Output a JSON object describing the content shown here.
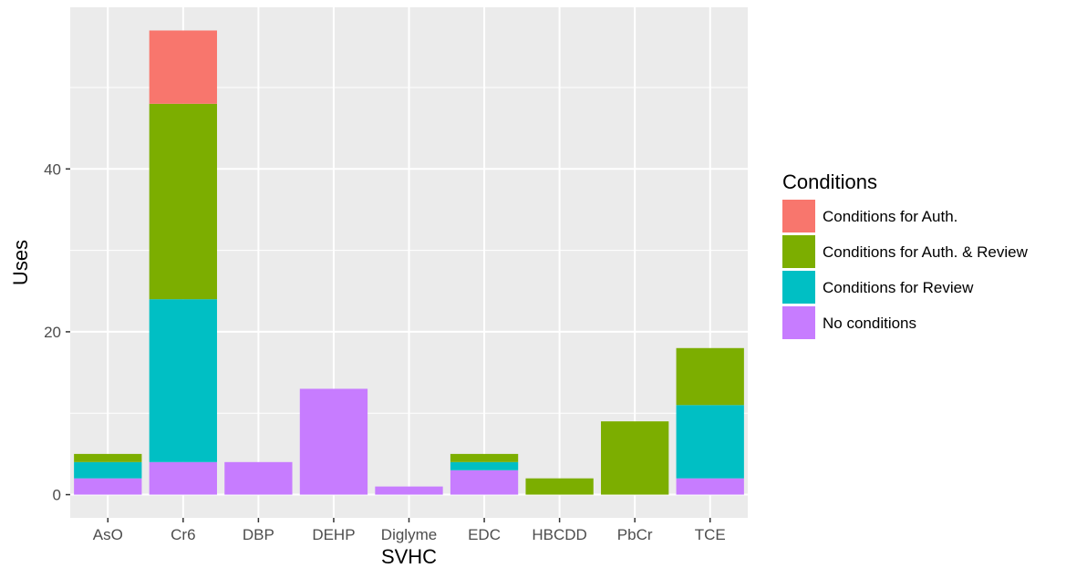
{
  "chart_data": {
    "type": "bar",
    "stacked": true,
    "categories": [
      "AsO",
      "Cr6",
      "DBP",
      "DEHP",
      "Diglyme",
      "EDC",
      "HBCDD",
      "PbCr",
      "TCE"
    ],
    "series": [
      {
        "name": "No conditions",
        "color": "#C77CFF",
        "values": [
          2,
          4,
          4,
          13,
          1,
          3,
          0,
          0,
          2
        ]
      },
      {
        "name": "Conditions for Review",
        "color": "#00BFC4",
        "values": [
          2,
          20,
          0,
          0,
          0,
          1,
          0,
          0,
          9
        ]
      },
      {
        "name": "Conditions for Auth. & Review",
        "color": "#7CAE00",
        "values": [
          1,
          24,
          0,
          0,
          0,
          1,
          2,
          9,
          7
        ]
      },
      {
        "name": "Conditions for Auth.",
        "color": "#F8766D",
        "values": [
          0,
          9,
          0,
          0,
          0,
          0,
          0,
          0,
          0
        ]
      }
    ],
    "legend_order": [
      "Conditions for Auth.",
      "Conditions for Auth. & Review",
      "Conditions for Review",
      "No conditions"
    ],
    "xlabel": "SVHC",
    "ylabel": "Uses",
    "legend_title": "Conditions",
    "ylim": [
      -2.85,
      59.85
    ],
    "yticks": [
      0,
      20,
      40
    ],
    "grid": true,
    "panel_background": "#EBEBEB",
    "legend_position": "right"
  }
}
